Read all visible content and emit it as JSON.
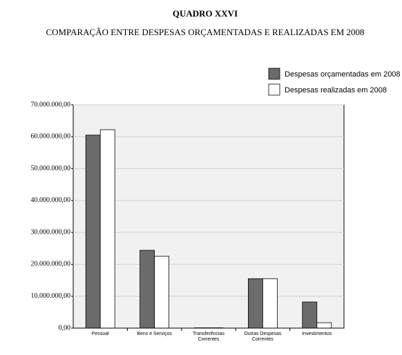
{
  "chart_data": {
    "type": "bar",
    "title": "QUADRO XXVI",
    "subtitle": "COMPARAÇÃO ENTRE DESPESAS ORÇAMENTADAS E REALIZADAS EM 2008",
    "categories": [
      "Pessoal",
      "Bens e Serviços",
      "Transferências Correntes",
      "Outras Despesas Correntes",
      "Investimentos"
    ],
    "series": [
      {
        "name": "Despesas orçamentadas em 2008",
        "color": "#6b6b6b",
        "values": [
          60500000,
          24400000,
          100000,
          15500000,
          8200000
        ]
      },
      {
        "name": "Despesas realizadas em 2008",
        "color": "#ffffff",
        "values": [
          62200000,
          22500000,
          100000,
          15500000,
          1700000
        ]
      }
    ],
    "ylim": [
      0,
      70000000
    ],
    "yticks": [
      {
        "value": 0,
        "label": "0,00"
      },
      {
        "value": 10000000,
        "label": "10.000.000,00"
      },
      {
        "value": 20000000,
        "label": "20.000.000,00"
      },
      {
        "value": 30000000,
        "label": "30.000.000,00"
      },
      {
        "value": 40000000,
        "label": "40.000.000,00"
      },
      {
        "value": 50000000,
        "label": "50.000.000,00"
      },
      {
        "value": 60000000,
        "label": "60.000.000,00"
      },
      {
        "value": 70000000,
        "label": "70.000.000,00"
      }
    ],
    "grid": true,
    "legend": "top-right"
  }
}
